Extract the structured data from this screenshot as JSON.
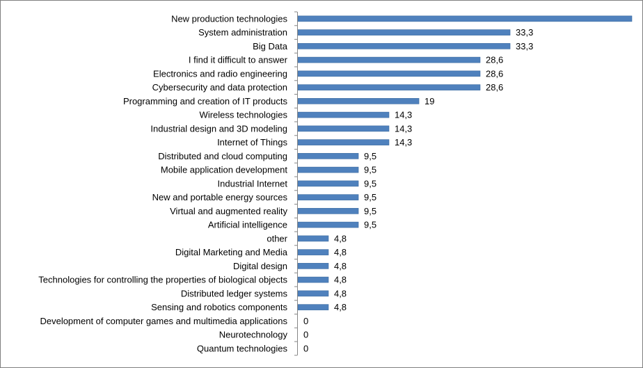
{
  "chart_data": {
    "type": "bar",
    "orientation": "horizontal",
    "bar_color": "#4f81bd",
    "axis_color": "#868686",
    "categories": [
      "New production technologies",
      "System administration",
      "Big Data",
      "I find it difficult to answer",
      "Electronics and radio engineering",
      "Cybersecurity and data protection",
      "Programming and creation of IT products",
      "Wireless technologies",
      "Industrial design and 3D modeling",
      "Internet of Things",
      "Distributed and cloud computing",
      "Mobile application development",
      "Industrial Internet",
      "New and portable energy sources",
      "Virtual and augmented reality",
      "Artificial intelligence",
      "other",
      "Digital Marketing and Media",
      "Digital design",
      "Technologies for controlling the properties of biological objects",
      "Distributed ledger systems",
      "Sensing and robotics components",
      "Development of computer games and multimedia applications",
      "Neurotechnology",
      "Quantum technologies"
    ],
    "values": [
      52.4,
      33.3,
      33.3,
      28.6,
      28.6,
      28.6,
      19,
      14.3,
      14.3,
      14.3,
      9.5,
      9.5,
      9.5,
      9.5,
      9.5,
      9.5,
      4.8,
      4.8,
      4.8,
      4.8,
      4.8,
      4.8,
      0,
      0,
      0
    ],
    "value_labels": [
      "",
      "33,3",
      "33,3",
      "28,6",
      "28,6",
      "28,6",
      "19",
      "14,3",
      "14,3",
      "14,3",
      "9,5",
      "9,5",
      "9,5",
      "9,5",
      "9,5",
      "9,5",
      "4,8",
      "4,8",
      "4,8",
      "4,8",
      "4,8",
      "4,8",
      "0",
      "0",
      "0"
    ],
    "xlim": [
      0,
      52.4
    ],
    "grid": false,
    "legend": "none",
    "title": "",
    "xlabel": "",
    "ylabel": ""
  }
}
